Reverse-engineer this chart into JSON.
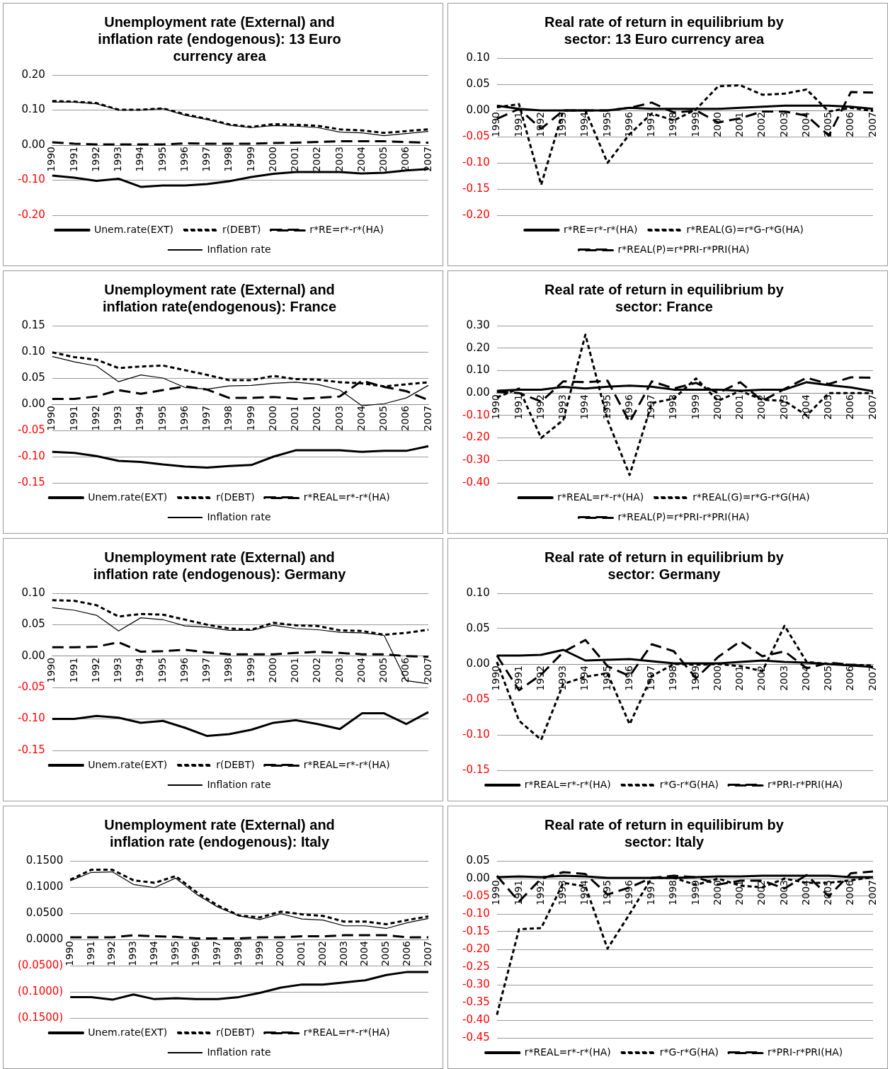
{
  "chart_data": [
    {
      "type": "line",
      "title": "Unemployment rate (External) and inflation rate (endogenous): 13 Euro currency area",
      "categories": [
        "1990",
        "1991",
        "1992",
        "1993",
        "1994",
        "1995",
        "1996",
        "1997",
        "1998",
        "1999",
        "2000",
        "2001",
        "2002",
        "2003",
        "2004",
        "2005",
        "2006",
        "2007"
      ],
      "ylim": [
        -0.2,
        0.2
      ],
      "yticks": [
        {
          "value": -0.2,
          "label": "-0.20"
        },
        {
          "value": -0.1,
          "label": "-0.10"
        },
        {
          "value": 0,
          "label": "0.00"
        },
        {
          "value": 0.1,
          "label": "0.10"
        },
        {
          "value": 0.2,
          "label": "0.20"
        }
      ],
      "grid": "y",
      "legend": "bottom",
      "marker": "none",
      "series": [
        {
          "name": "Unem.rate(EXT)",
          "color": "#000000",
          "line_style": "solid",
          "values": [
            -0.087,
            -0.093,
            -0.102,
            -0.096,
            -0.119,
            -0.115,
            -0.115,
            -0.111,
            -0.103,
            -0.091,
            -0.082,
            -0.077,
            -0.077,
            -0.077,
            -0.081,
            -0.079,
            -0.072,
            -0.068
          ]
        },
        {
          "name": "r(DEBT)",
          "color": "#000000",
          "line_style": "dotted",
          "values": [
            0.126,
            0.124,
            0.12,
            0.101,
            0.101,
            0.105,
            0.088,
            0.075,
            0.059,
            0.052,
            0.06,
            0.058,
            0.055,
            0.045,
            0.042,
            0.035,
            0.04,
            0.045
          ]
        },
        {
          "name": "r*RE=r*-r*(HA)",
          "color": "#000000",
          "line_style": "dashed",
          "values": [
            0.008,
            0.004,
            0.002,
            0.002,
            0.002,
            0.002,
            0.005,
            0.004,
            0.004,
            0.004,
            0.006,
            0.007,
            0.009,
            0.011,
            0.011,
            0.011,
            0.009,
            0.007
          ]
        },
        {
          "name": "Inflation rate",
          "color": "#000000",
          "line_style": "solid",
          "values": [
            0.123,
            0.123,
            0.118,
            0.1,
            0.1,
            0.104,
            0.085,
            0.073,
            0.057,
            0.05,
            0.056,
            0.054,
            0.05,
            0.037,
            0.035,
            0.027,
            0.033,
            0.039
          ]
        }
      ]
    },
    {
      "type": "line",
      "title": "Real rate of return in equilibrium by sector: 13 Euro currency area",
      "categories": [
        "1990",
        "1991",
        "1992",
        "1993",
        "1994",
        "1995",
        "1996",
        "1997",
        "1998",
        "1999",
        "2000",
        "2001",
        "2002",
        "2003",
        "2004",
        "2005",
        "2006",
        "2007"
      ],
      "ylim": [
        -0.2,
        0.1
      ],
      "yticks": [
        {
          "value": -0.2,
          "label": "-0.20"
        },
        {
          "value": -0.15,
          "label": "-0.15"
        },
        {
          "value": -0.1,
          "label": "-0.10"
        },
        {
          "value": -0.05,
          "label": "-0.05"
        },
        {
          "value": 0,
          "label": "0.00"
        },
        {
          "value": 0.05,
          "label": "0.05"
        },
        {
          "value": 0.1,
          "label": "0.10"
        }
      ],
      "grid": "y",
      "legend": "bottom",
      "marker": "none",
      "series": [
        {
          "name": "r*RE=r*-r*(HA)",
          "color": "#000000",
          "line_style": "solid",
          "values": [
            0.009,
            0.003,
            0,
            0,
            0,
            0,
            0.005,
            0.003,
            0.003,
            0.003,
            0.003,
            0.005,
            0.007,
            0.009,
            0.009,
            0.009,
            0.007,
            0.003
          ]
        },
        {
          "name": "r*REAL(G)=r*G-r*G(HA)",
          "color": "#000000",
          "line_style": "dotted",
          "values": [
            0.006,
            0.012,
            -0.142,
            0,
            0,
            -0.1,
            -0.045,
            -0.006,
            -0.019,
            0.002,
            0.046,
            0.048,
            0.03,
            0.032,
            0.04,
            -0.002,
            0.005,
            -0.001
          ]
        },
        {
          "name": "r*REAL(P)=r*PRI-r*PRI(HA)",
          "color": "#000000",
          "line_style": "dashed",
          "values": [
            -0.016,
            0.003,
            -0.035,
            0,
            0,
            0,
            0.005,
            0.015,
            -0.004,
            0,
            -0.023,
            -0.015,
            -0.002,
            -0.002,
            -0.01,
            -0.048,
            0.035,
            0.034
          ]
        }
      ]
    },
    {
      "type": "line",
      "title": "Unemployment rate (External) and inflation rate(endogenous): France",
      "categories": [
        "1990",
        "1991",
        "1992",
        "1993",
        "1994",
        "1995",
        "1996",
        "1997",
        "1998",
        "1999",
        "2000",
        "2001",
        "2002",
        "2003",
        "2004",
        "2005",
        "2006",
        "2007"
      ],
      "ylim": [
        -0.15,
        0.15
      ],
      "yticks": [
        {
          "value": -0.15,
          "label": "-0.15"
        },
        {
          "value": -0.1,
          "label": "-0.10"
        },
        {
          "value": -0.05,
          "label": "-0.05"
        },
        {
          "value": 0,
          "label": "0.00"
        },
        {
          "value": 0.05,
          "label": "0.05"
        },
        {
          "value": 0.1,
          "label": "0.10"
        },
        {
          "value": 0.15,
          "label": "0.15"
        }
      ],
      "grid": "y",
      "legend": "bottom",
      "marker": "none",
      "series": [
        {
          "name": "Unem.rate(EXT)",
          "color": "#000000",
          "line_style": "solid",
          "values": [
            -0.091,
            -0.093,
            -0.099,
            -0.108,
            -0.11,
            -0.115,
            -0.119,
            -0.121,
            -0.118,
            -0.116,
            -0.1,
            -0.088,
            -0.088,
            -0.088,
            -0.091,
            -0.089,
            -0.089,
            -0.08
          ]
        },
        {
          "name": "r(DEBT)",
          "color": "#000000",
          "line_style": "dotted",
          "values": [
            0.099,
            0.09,
            0.085,
            0.069,
            0.072,
            0.074,
            0.065,
            0.056,
            0.046,
            0.046,
            0.054,
            0.048,
            0.047,
            0.042,
            0.04,
            0.034,
            0.038,
            0.042
          ]
        },
        {
          "name": "r*REAL=r*-r*(HA)",
          "color": "#000000",
          "line_style": "dashed",
          "values": [
            0.01,
            0.01,
            0.015,
            0.027,
            0.02,
            0.027,
            0.034,
            0.028,
            0.012,
            0.012,
            0.014,
            0.01,
            0.012,
            0.015,
            0.045,
            0.033,
            0.025,
            0.008
          ]
        },
        {
          "name": "Inflation rate",
          "color": "#000000",
          "line_style": "solid",
          "values": [
            0.091,
            0.081,
            0.073,
            0.043,
            0.056,
            0.05,
            0.032,
            0.029,
            0.035,
            0.036,
            0.04,
            0.042,
            0.038,
            0.027,
            -0.003,
            0.001,
            0.012,
            0.036
          ]
        }
      ]
    },
    {
      "type": "line",
      "title": "Real rate of return in equilibrium by sector: France",
      "categories": [
        "1990",
        "1991",
        "1992",
        "1993",
        "1994",
        "1995",
        "1996",
        "1997",
        "1998",
        "1999",
        "2000",
        "2001",
        "2002",
        "2003",
        "2004",
        "2005",
        "2006",
        "2007"
      ],
      "ylim": [
        -0.4,
        0.3
      ],
      "yticks": [
        {
          "value": -0.4,
          "label": "-0.40"
        },
        {
          "value": -0.3,
          "label": "-0.30"
        },
        {
          "value": -0.2,
          "label": "-0.20"
        },
        {
          "value": -0.1,
          "label": "-0.10"
        },
        {
          "value": 0,
          "label": "0.00"
        },
        {
          "value": 0.1,
          "label": "0.10"
        },
        {
          "value": 0.2,
          "label": "0.20"
        },
        {
          "value": 0.3,
          "label": "0.30"
        }
      ],
      "grid": "y",
      "legend": "bottom",
      "marker": "none",
      "series": [
        {
          "name": "r*REAL=r*-r*(HA)",
          "color": "#000000",
          "line_style": "solid",
          "values": [
            0.01,
            0.015,
            0.015,
            0.027,
            0.02,
            0.028,
            0.033,
            0.028,
            0.015,
            0.015,
            0.015,
            0.01,
            0.015,
            0.015,
            0.048,
            0.035,
            0.025,
            0.008
          ]
        },
        {
          "name": "r*REAL(G)=r*G-r*G(HA)",
          "color": "#000000",
          "line_style": "dotted",
          "values": [
            -0.02,
            0.02,
            -0.2,
            -0.12,
            0.26,
            -0.12,
            -0.365,
            -0.045,
            -0.025,
            0.065,
            -0.035,
            0.01,
            -0.03,
            -0.035,
            -0.1,
            0,
            0,
            0
          ]
        },
        {
          "name": "r*REAL(P)=r*PRI-r*PRI(HA)",
          "color": "#000000",
          "line_style": "dashed",
          "values": [
            0.005,
            0,
            -0.038,
            0.052,
            0.048,
            0.055,
            -0.13,
            0.052,
            0.02,
            0.045,
            0,
            0.048,
            -0.035,
            0.018,
            0.068,
            0.04,
            0.07,
            0.068
          ]
        }
      ]
    },
    {
      "type": "line",
      "title": "Unemployment rate (External) and inflation rate (endogenous): Germany",
      "categories": [
        "1990",
        "1991",
        "1992",
        "1993",
        "1994",
        "1995",
        "1996",
        "1997",
        "1998",
        "1999",
        "2000",
        "2001",
        "2002",
        "2003",
        "2004",
        "2005",
        "2006",
        "2007"
      ],
      "ylim": [
        -0.15,
        0.1
      ],
      "yticks": [
        {
          "value": -0.15,
          "label": "-0.15"
        },
        {
          "value": -0.1,
          "label": "-0.10"
        },
        {
          "value": -0.05,
          "label": "-0.05"
        },
        {
          "value": 0,
          "label": "0.00"
        },
        {
          "value": 0.05,
          "label": "0.05"
        },
        {
          "value": 0.1,
          "label": "0.10"
        }
      ],
      "grid": "y",
      "legend": "bottom",
      "marker": "none",
      "series": [
        {
          "name": "Unem.rate(EXT)",
          "color": "#000000",
          "line_style": "solid",
          "values": [
            -0.1,
            -0.1,
            -0.095,
            -0.098,
            -0.106,
            -0.103,
            -0.114,
            -0.127,
            -0.124,
            -0.117,
            -0.106,
            -0.102,
            -0.108,
            -0.116,
            -0.091,
            -0.091,
            -0.108,
            -0.089
          ]
        },
        {
          "name": "r(DEBT)",
          "color": "#000000",
          "line_style": "dotted",
          "values": [
            0.089,
            0.088,
            0.081,
            0.063,
            0.067,
            0.066,
            0.058,
            0.05,
            0.044,
            0.042,
            0.053,
            0.049,
            0.048,
            0.041,
            0.04,
            0.034,
            0.037,
            0.042
          ]
        },
        {
          "name": "r*REAL=r*-r*(HA)",
          "color": "#000000",
          "line_style": "dashed",
          "values": [
            0.014,
            0.014,
            0.015,
            0.022,
            0.007,
            0.008,
            0.01,
            0.006,
            0.003,
            0.003,
            0.003,
            0.005,
            0.007,
            0.005,
            0.003,
            0.003,
            0,
            -0.001
          ]
        },
        {
          "name": "Inflation rate",
          "color": "#000000",
          "line_style": "solid",
          "values": [
            0.077,
            0.073,
            0.065,
            0.04,
            0.061,
            0.058,
            0.048,
            0.046,
            0.041,
            0.041,
            0.049,
            0.044,
            0.042,
            0.038,
            0.037,
            0.033,
            -0.039,
            -0.044
          ]
        }
      ]
    },
    {
      "type": "line",
      "title": "Real rate of return in equilibrium by sector: Germany",
      "categories": [
        "1990",
        "1991",
        "1992",
        "1993",
        "1994",
        "1995",
        "1996",
        "1997",
        "1998",
        "1999",
        "2000",
        "2001",
        "2002",
        "2003",
        "2004",
        "2005",
        "2006",
        "2007"
      ],
      "ylim": [
        -0.15,
        0.1
      ],
      "yticks": [
        {
          "value": -0.15,
          "label": "-0.15"
        },
        {
          "value": -0.1,
          "label": "-0.10"
        },
        {
          "value": -0.05,
          "label": "-0.05"
        },
        {
          "value": 0,
          "label": "0.00"
        },
        {
          "value": 0.05,
          "label": "0.05"
        },
        {
          "value": 0.1,
          "label": "0.10"
        }
      ],
      "grid": "y",
      "legend": "bottom",
      "marker": "none",
      "series": [
        {
          "name": "r*REAL=r*-r*(HA)",
          "color": "#000000",
          "line_style": "solid",
          "values": [
            0.012,
            0.012,
            0.013,
            0.02,
            0.005,
            0.006,
            0.007,
            0.004,
            0.001,
            0.001,
            0.001,
            0.003,
            0.005,
            0.003,
            0.002,
            0,
            -0.002,
            -0.004
          ]
        },
        {
          "name": "r*G-r*G(HA)",
          "color": "#000000",
          "line_style": "dotted",
          "values": [
            0.003,
            -0.08,
            -0.107,
            -0.028,
            -0.018,
            -0.013,
            -0.085,
            -0.017,
            0,
            -0.001,
            0,
            -0.003,
            -0.01,
            0.054,
            0.003,
            0,
            -0.001,
            -0.002
          ]
        },
        {
          "name": "r*PRI-r*PRI(HA)",
          "color": "#000000",
          "line_style": "dashed",
          "values": [
            0.012,
            -0.037,
            -0.015,
            0.017,
            0.034,
            -0.003,
            -0.017,
            0.028,
            0.018,
            -0.02,
            0.01,
            0.032,
            0.011,
            0.018,
            -0.006,
            0.002,
            -0.001,
            -0.004
          ]
        }
      ]
    },
    {
      "type": "line",
      "title": "Unemployment rate (External) and inflation rate (endogenous): Italy",
      "categories": [
        "1990",
        "1991",
        "1992",
        "1993",
        "1994",
        "1995",
        "1996",
        "1997",
        "1998",
        "1999",
        "2000",
        "2001",
        "2002",
        "2003",
        "2004",
        "2005",
        "2006",
        "2007"
      ],
      "ylim": [
        -0.15,
        0.15
      ],
      "yticks": [
        {
          "value": -0.15,
          "label": "(0.1500)"
        },
        {
          "value": -0.1,
          "label": "(0.1000)"
        },
        {
          "value": -0.05,
          "label": "(0.0500)"
        },
        {
          "value": 0,
          "label": "0.0000"
        },
        {
          "value": 0.05,
          "label": "0.0500"
        },
        {
          "value": 0.1,
          "label": "0.1000"
        },
        {
          "value": 0.15,
          "label": "0.1500"
        }
      ],
      "grid": "y",
      "legend": "bottom",
      "marker": "none",
      "series": [
        {
          "name": "Unem.rate(EXT)",
          "color": "#000000",
          "line_style": "solid",
          "values": [
            -0.11,
            -0.11,
            -0.115,
            -0.105,
            -0.114,
            -0.112,
            -0.114,
            -0.114,
            -0.11,
            -0.102,
            -0.092,
            -0.086,
            -0.086,
            -0.082,
            -0.078,
            -0.068,
            -0.062,
            -0.062
          ]
        },
        {
          "name": "r(DEBT)",
          "color": "#000000",
          "line_style": "dotted",
          "values": [
            0.114,
            0.133,
            0.133,
            0.113,
            0.108,
            0.121,
            0.09,
            0.065,
            0.046,
            0.042,
            0.053,
            0.048,
            0.045,
            0.034,
            0.034,
            0.029,
            0.037,
            0.044
          ]
        },
        {
          "name": "r*REAL=r*-r*(HA)",
          "color": "#000000",
          "line_style": "dashed",
          "values": [
            0.004,
            0.004,
            0.004,
            0.008,
            0.006,
            0.005,
            0.002,
            0.002,
            0.002,
            0.004,
            0.004,
            0.006,
            0.006,
            0.008,
            0.008,
            0.008,
            0.004,
            0.004
          ]
        },
        {
          "name": "Inflation rate",
          "color": "#000000",
          "line_style": "solid",
          "values": [
            0.112,
            0.128,
            0.129,
            0.105,
            0.099,
            0.117,
            0.086,
            0.062,
            0.045,
            0.038,
            0.049,
            0.039,
            0.037,
            0.026,
            0.026,
            0.021,
            0.032,
            0.04
          ]
        }
      ]
    },
    {
      "type": "line",
      "title": "Real rate of return in equilibirum by sector: Italy",
      "categories": [
        "1990",
        "1991",
        "1992",
        "1993",
        "1994",
        "1995",
        "1996",
        "1997",
        "1998",
        "1999",
        "2000",
        "2001",
        "2002",
        "2003",
        "2004",
        "2005",
        "2006",
        "2007"
      ],
      "ylim": [
        -0.45,
        0.05
      ],
      "yticks": [
        {
          "value": -0.45,
          "label": "-0.45"
        },
        {
          "value": -0.4,
          "label": "-0.40"
        },
        {
          "value": -0.35,
          "label": "-0.35"
        },
        {
          "value": -0.3,
          "label": "-0.30"
        },
        {
          "value": -0.25,
          "label": "-0.25"
        },
        {
          "value": -0.2,
          "label": "-0.20"
        },
        {
          "value": -0.15,
          "label": "-0.15"
        },
        {
          "value": -0.1,
          "label": "-0.10"
        },
        {
          "value": -0.05,
          "label": "-0.05"
        },
        {
          "value": 0,
          "label": "0.00"
        },
        {
          "value": 0.05,
          "label": "0.05"
        }
      ],
      "grid": "y",
      "legend": "bottom",
      "marker": "none",
      "series": [
        {
          "name": "r*REAL=r*-r*(HA)",
          "color": "#000000",
          "line_style": "solid",
          "values": [
            0.004,
            0.006,
            0.004,
            0.008,
            0.006,
            0.002,
            0.002,
            0.002,
            0.002,
            0.004,
            0.006,
            0.006,
            0.008,
            0.008,
            0.008,
            0.008,
            0.004,
            0.004
          ]
        },
        {
          "name": "r*G-r*G(HA)",
          "color": "#000000",
          "line_style": "dotted",
          "values": [
            -0.385,
            -0.143,
            -0.14,
            -0.012,
            -0.022,
            -0.198,
            -0.1,
            0.002,
            0.002,
            -0.018,
            0,
            -0.02,
            -0.025,
            0,
            -0.012,
            -0.012,
            -0.005,
            0.004
          ]
        },
        {
          "name": "r*PRI-r*PRI(HA)",
          "color": "#000000",
          "line_style": "dashed",
          "values": [
            0.008,
            -0.065,
            0,
            0.018,
            0.013,
            -0.045,
            -0.025,
            0.002,
            0.008,
            0.004,
            -0.017,
            -0.006,
            -0.006,
            -0.028,
            0.01,
            -0.05,
            0.015,
            0.02
          ]
        }
      ]
    }
  ]
}
